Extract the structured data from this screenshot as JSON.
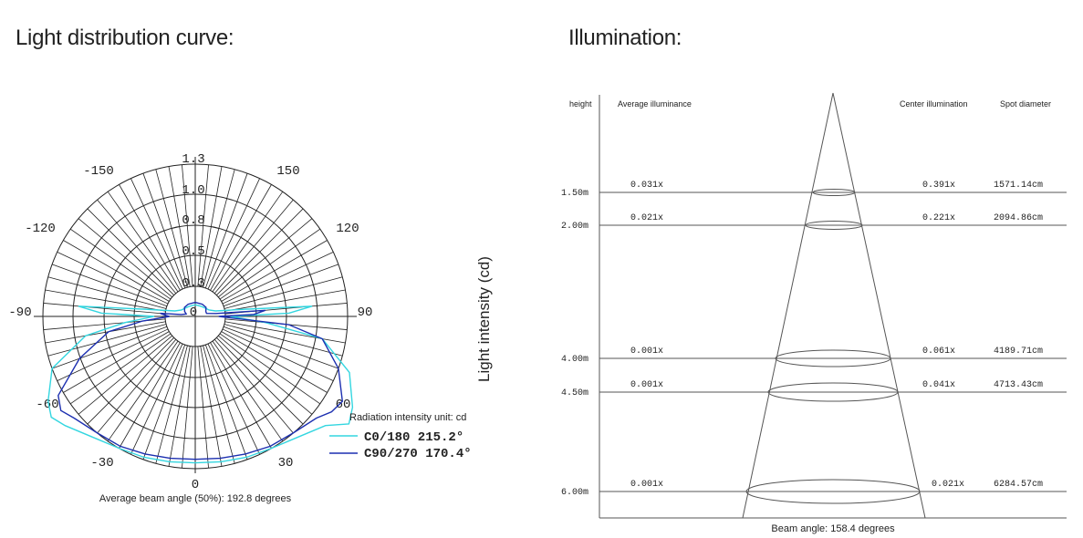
{
  "headings": {
    "left": "Light distribution curve:",
    "right": "Illumination:"
  },
  "polar": {
    "angle_labels": [
      "0",
      "30",
      "60",
      "90",
      "120",
      "150",
      "-150",
      "-120",
      "-90",
      "-60",
      "-30"
    ],
    "ring_labels": [
      "0",
      "0.3",
      "0.5",
      "0.8",
      "1.0",
      "1.3"
    ],
    "ylabel": "Light intensity (cd)",
    "unit_note": "Radiation intensity unit: cd",
    "beam_note": "Average beam angle (50%): 192.8 degrees",
    "colors": {
      "c0": "#33d6e0",
      "c90": "#1c2fb0",
      "grid": "#222222"
    },
    "legend": [
      {
        "label": "C0/180 215.2°",
        "color": "#33d6e0"
      },
      {
        "label": "C90/270 170.4°",
        "color": "#1c2fb0"
      }
    ]
  },
  "chart_data": {
    "type": "polar-line",
    "series": [
      {
        "name": "C0/180",
        "angles": [
          -180,
          -150,
          -130,
          -115,
          -105,
          -98,
          -95,
          -92,
          -90,
          -85,
          -80,
          -70,
          -60,
          -55,
          -50,
          -40,
          -30,
          -20,
          -10,
          0,
          10,
          20,
          30,
          40,
          50,
          55,
          60,
          70,
          80,
          85,
          90,
          92,
          95,
          98,
          105,
          115,
          130,
          150,
          180
        ],
        "values": [
          0.1,
          0.1,
          0.11,
          0.13,
          0.18,
          0.45,
          1.0,
          0.8,
          0.35,
          0.6,
          0.95,
          1.3,
          1.45,
          1.5,
          1.45,
          1.35,
          1.3,
          1.28,
          1.26,
          1.25,
          1.26,
          1.28,
          1.3,
          1.35,
          1.45,
          1.6,
          1.55,
          1.4,
          1.1,
          0.6,
          0.3,
          0.8,
          1.0,
          0.45,
          0.18,
          0.13,
          0.11,
          0.1,
          0.1
        ]
      },
      {
        "name": "C90/270",
        "angles": [
          -180,
          -150,
          -130,
          -115,
          -105,
          -98,
          -95,
          -92,
          -90,
          -85,
          -80,
          -70,
          -60,
          -55,
          -50,
          -40,
          -30,
          -20,
          -10,
          0,
          10,
          20,
          30,
          40,
          50,
          55,
          60,
          70,
          80,
          85,
          90,
          92,
          95,
          98,
          105,
          115,
          130,
          150,
          180
        ],
        "values": [
          0.12,
          0.12,
          0.12,
          0.1,
          0.08,
          0.12,
          0.3,
          0.25,
          0.22,
          0.45,
          0.75,
          1.05,
          1.35,
          1.4,
          1.35,
          1.3,
          1.28,
          1.25,
          1.23,
          1.22,
          1.23,
          1.25,
          1.28,
          1.3,
          1.35,
          1.42,
          1.45,
          1.3,
          1.1,
          0.8,
          0.2,
          0.5,
          0.6,
          0.18,
          0.1,
          0.1,
          0.12,
          0.12,
          0.12
        ]
      }
    ],
    "ring_values": [
      0,
      0.3,
      0.5,
      0.8,
      1.0,
      1.3
    ],
    "beam_angle_avg": 192.8
  },
  "illumination": {
    "headers": {
      "height": "height",
      "avg": "Average illuminance",
      "center": "Center illumination",
      "spot": "Spot diameter"
    },
    "rows": [
      {
        "height": "1.50m",
        "avg": "0.031x",
        "center": "0.391x",
        "spot": "1571.14cm"
      },
      {
        "height": "2.00m",
        "avg": "0.021x",
        "center": "0.221x",
        "spot": "2094.86cm"
      },
      {
        "height": "4.00m",
        "avg": "0.001x",
        "center": "0.061x",
        "spot": "4189.71cm"
      },
      {
        "height": "4.50m",
        "avg": "0.001x",
        "center": "0.041x",
        "spot": "4713.43cm"
      },
      {
        "height": "6.00m",
        "avg": "0.001x",
        "center": "0.021x",
        "spot": "6284.57cm"
      }
    ],
    "beam_note": "Beam angle: 158.4 degrees"
  }
}
